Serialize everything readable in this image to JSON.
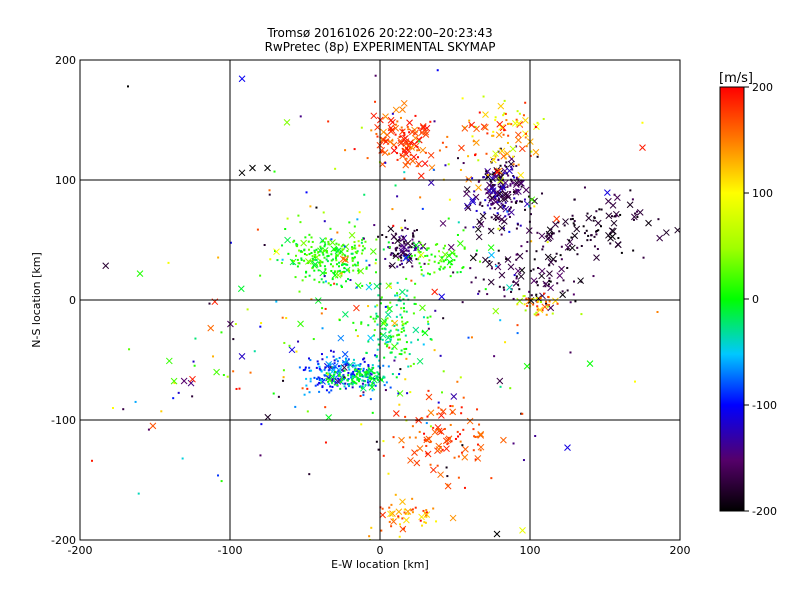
{
  "chart_data": {
    "type": "scatter",
    "title_line1": "Tromsø 20161026 20:22:00–20:23:43",
    "title_line2": "RwPretec (8p) EXPERIMENTAL SKYMAP",
    "xlabel": "E-W location [km]",
    "ylabel": "N-S location [km]",
    "xlim": [
      -200,
      200
    ],
    "ylim": [
      -200,
      200
    ],
    "xticks": [
      -200,
      -100,
      0,
      100,
      200
    ],
    "yticks": [
      -200,
      -100,
      0,
      100,
      200
    ],
    "grid": true,
    "colorbar": {
      "label": "[m/s]",
      "range": [
        -200,
        200
      ],
      "ticks": [
        200,
        100,
        0,
        -100,
        -200
      ]
    },
    "clusters": [
      {
        "cx": 15,
        "cy": 135,
        "sx": 12,
        "sy": 12,
        "n": 110,
        "vmin": 140,
        "vmax": 200,
        "cross": 0.55
      },
      {
        "cx": -35,
        "cy": 35,
        "sx": 16,
        "sy": 12,
        "n": 230,
        "vmin": -20,
        "vmax": 40,
        "cross": 0.1
      },
      {
        "cx": 15,
        "cy": 45,
        "sx": 6,
        "sy": 8,
        "n": 90,
        "vmin": -200,
        "vmax": -130,
        "cross": 0.25
      },
      {
        "cx": 40,
        "cy": 35,
        "sx": 12,
        "sy": 8,
        "n": 70,
        "vmin": -10,
        "vmax": 40,
        "cross": 0.1
      },
      {
        "cx": 80,
        "cy": 90,
        "sx": 10,
        "sy": 15,
        "n": 190,
        "vmin": -200,
        "vmax": -110,
        "cross": 0.4
      },
      {
        "cx": 80,
        "cy": 135,
        "sx": 15,
        "sy": 15,
        "n": 90,
        "vmin": 60,
        "vmax": 200,
        "cross": 0.45
      },
      {
        "cx": 140,
        "cy": 60,
        "sx": 22,
        "sy": 15,
        "n": 110,
        "vmin": -200,
        "vmax": -160,
        "cross": 0.35
      },
      {
        "cx": 100,
        "cy": 20,
        "sx": 25,
        "sy": 15,
        "n": 90,
        "vmin": -200,
        "vmax": -150,
        "cross": 0.3
      },
      {
        "cx": -25,
        "cy": -60,
        "sx": 15,
        "sy": 8,
        "n": 210,
        "vmin": -120,
        "vmax": -40,
        "cross": 0.08
      },
      {
        "cx": -15,
        "cy": -65,
        "sx": 10,
        "sy": 4,
        "n": 100,
        "vmin": -30,
        "vmax": 10,
        "cross": 0.05
      },
      {
        "cx": 10,
        "cy": -20,
        "sx": 12,
        "sy": 20,
        "n": 140,
        "vmin": -40,
        "vmax": 40,
        "cross": 0.08
      },
      {
        "cx": 45,
        "cy": -115,
        "sx": 18,
        "sy": 15,
        "n": 100,
        "vmin": 150,
        "vmax": 200,
        "cross": 0.35
      },
      {
        "cx": 20,
        "cy": -180,
        "sx": 12,
        "sy": 8,
        "n": 50,
        "vmin": 100,
        "vmax": 200,
        "cross": 0.25
      },
      {
        "cx": 105,
        "cy": -5,
        "sx": 6,
        "sy": 6,
        "n": 40,
        "vmin": 50,
        "vmax": 200,
        "cross": 0.15
      },
      {
        "cx": 5,
        "cy": 0,
        "sx": 60,
        "sy": 80,
        "n": 220,
        "vmin": -200,
        "vmax": 200,
        "cross": 0.2
      },
      {
        "cx": -100,
        "cy": -60,
        "sx": 45,
        "sy": 55,
        "n": 60,
        "vmin": -200,
        "vmax": 200,
        "cross": 0.15
      }
    ],
    "isolated": [
      {
        "x": -168,
        "y": 178,
        "v": -200,
        "m": "dot"
      },
      {
        "x": -92,
        "y": 106,
        "v": -200,
        "m": "x"
      },
      {
        "x": -85,
        "y": 110,
        "v": -200,
        "m": "x"
      },
      {
        "x": -75,
        "y": 110,
        "v": -200,
        "m": "x"
      },
      {
        "x": -62,
        "y": 148,
        "v": 40,
        "m": "x"
      },
      {
        "x": -160,
        "y": 22,
        "v": 10,
        "m": "x"
      },
      {
        "x": -125,
        "y": -66,
        "v": 190,
        "m": "x"
      },
      {
        "x": -92,
        "y": -47,
        "v": -120,
        "m": "x"
      },
      {
        "x": -192,
        "y": -134,
        "v": 190,
        "m": "dot"
      },
      {
        "x": -178,
        "y": -90,
        "v": 100,
        "m": "dot"
      },
      {
        "x": 78,
        "y": -195,
        "v": -200,
        "m": "x"
      },
      {
        "x": 95,
        "y": -192,
        "v": 90,
        "m": "x"
      },
      {
        "x": 140,
        "y": -53,
        "v": 0,
        "m": "x"
      },
      {
        "x": 125,
        "y": -123,
        "v": -110,
        "m": "x"
      },
      {
        "x": 175,
        "y": 127,
        "v": 190,
        "m": "x"
      },
      {
        "x": 170,
        "y": -68,
        "v": 100,
        "m": "dot"
      },
      {
        "x": 185,
        "y": -10,
        "v": 150,
        "m": "dot"
      }
    ]
  }
}
